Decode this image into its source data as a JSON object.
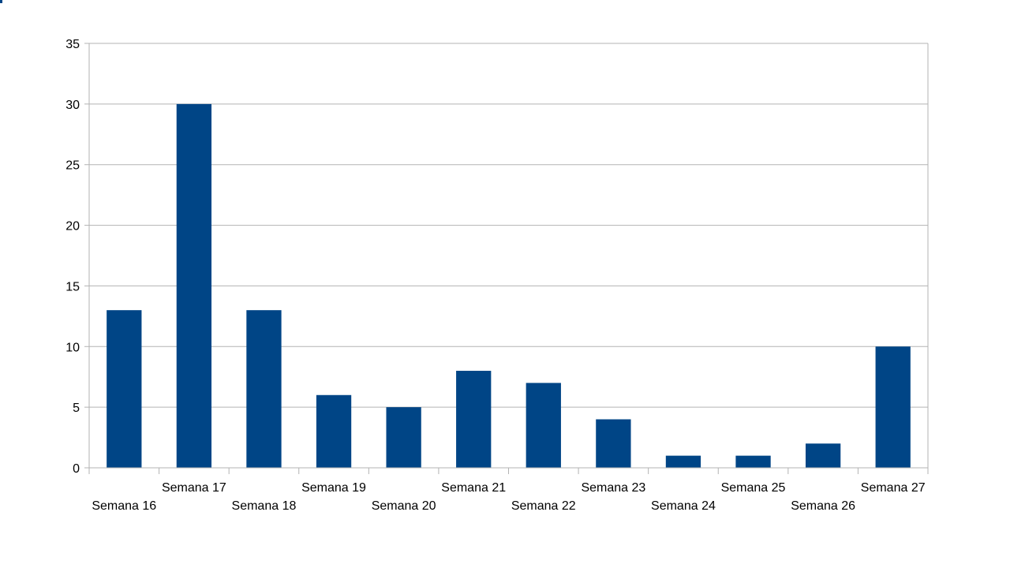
{
  "chart_data": {
    "type": "bar",
    "title": "",
    "xlabel": "",
    "ylabel": "",
    "categories": [
      "Semana 16",
      "Semana 17",
      "Semana 18",
      "Semana 19",
      "Semana 20",
      "Semana 21",
      "Semana 22",
      "Semana 23",
      "Semana 24",
      "Semana 25",
      "Semana 26",
      "Semana 27"
    ],
    "values": [
      13,
      30,
      13,
      6,
      5,
      8,
      7,
      4,
      1,
      1,
      2,
      10
    ],
    "ylim": [
      0,
      35
    ],
    "yticks": [
      "0",
      "5",
      "10",
      "15",
      "20",
      "25",
      "30",
      "35"
    ],
    "grid": "horizontal",
    "legend": "none",
    "bar_color": "#004586",
    "grid_color": "#b3b3b3"
  }
}
